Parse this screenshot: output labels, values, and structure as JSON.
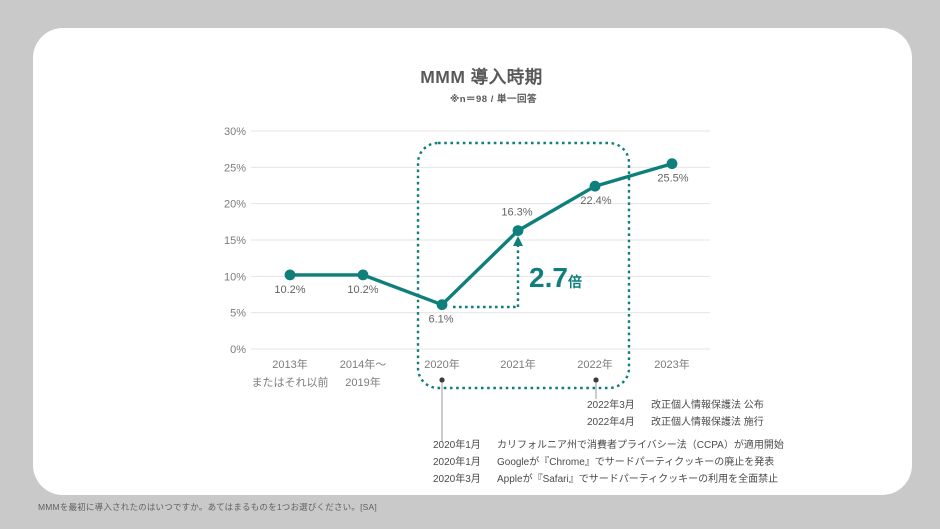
{
  "page": {
    "background_color": "#c9c9c9",
    "card_color": "#ffffff"
  },
  "header": {
    "title": "MMM 導入時期",
    "subtitle": "※n＝98 / 単一回答"
  },
  "chart_data": {
    "type": "line",
    "title": "MMM 導入時期",
    "subtitle": "※n＝98 / 単一回答",
    "categories": [
      "2013年またはそれ以前",
      "2014年〜2019年",
      "2020年",
      "2021年",
      "2022年",
      "2023年"
    ],
    "category_lines": [
      [
        "2013年",
        "またはそれ以前"
      ],
      [
        "2014年〜",
        "2019年"
      ],
      [
        "2020年"
      ],
      [
        "2021年"
      ],
      [
        "2022年"
      ],
      [
        "2023年"
      ]
    ],
    "values": [
      10.2,
      10.2,
      6.1,
      16.3,
      22.4,
      25.5
    ],
    "value_labels": [
      "10.2%",
      "10.2%",
      "6.1%",
      "16.3%",
      "22.4%",
      "25.5%"
    ],
    "xlabel": "",
    "ylabel": "",
    "ylim": [
      0,
      30
    ],
    "ytick_step": 5,
    "ytick_labels": [
      "0%",
      "5%",
      "10%",
      "15%",
      "20%",
      "25%",
      "30%"
    ],
    "grid": true,
    "legend": "none",
    "line_color": "#0e7f7b",
    "highlight_range": [
      "2020年",
      "2022年"
    ],
    "multiplier_annotation": {
      "value": "2.7",
      "unit": "倍",
      "from": "6.1%",
      "to": "16.3%"
    }
  },
  "annotations": {
    "events_2022": [
      {
        "date": "2022年3月",
        "text": "改正個人情報保護法 公布"
      },
      {
        "date": "2022年4月",
        "text": "改正個人情報保護法 施行"
      }
    ],
    "events_2020": [
      {
        "date": "2020年1月",
        "text": "カリフォルニア州で消費者プライバシー法（CCPA）が適用開始"
      },
      {
        "date": "2020年1月",
        "text": "Googleが『Chrome』でサードパーティクッキーの廃止を発表"
      },
      {
        "date": "2020年3月",
        "text": "Appleが『Safari』でサードパーティクッキーの利用を全面禁止"
      }
    ]
  },
  "footer": {
    "question": "MMMを最初に導入されたのはいつですか。あてはまるものを1つお選びください。[SA]"
  },
  "colors": {
    "accent_teal": "#0e7f7b",
    "grid_line": "#e4e4e4",
    "axis_label": "#7c7c7c",
    "value_label": "#636363",
    "title_text": "#595959",
    "event_text": "#4b4b4b",
    "connector": "#9a9a9a"
  }
}
